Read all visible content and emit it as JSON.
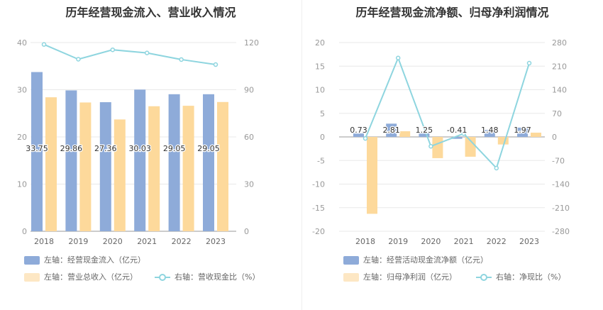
{
  "chart_data": [
    {
      "type": "bar",
      "title": "历年经营现金流入、营业收入情况",
      "categories": [
        "2018",
        "2019",
        "2020",
        "2021",
        "2022",
        "2023"
      ],
      "left_axis": {
        "ylim": [
          0,
          40
        ],
        "ticks": [
          "0",
          "10",
          "20",
          "30",
          "40"
        ]
      },
      "right_axis": {
        "ylim": [
          0,
          120
        ],
        "ticks": [
          "0",
          "30",
          "60",
          "90",
          "120"
        ]
      },
      "series": [
        {
          "name": "左轴：经营现金流入（亿元）",
          "kind": "bar",
          "axis": "left",
          "color": "#8eabd9",
          "values": [
            33.75,
            29.86,
            27.36,
            30.03,
            29.05,
            29.05
          ],
          "labels": [
            "33.75",
            "29.86",
            "27.36",
            "30.03",
            "29.05",
            "29.05"
          ]
        },
        {
          "name": "左轴：营业总收入（亿元）",
          "kind": "bar",
          "axis": "left",
          "color": "#fdd99b",
          "values": [
            28.4,
            27.3,
            23.7,
            26.5,
            26.6,
            27.4
          ]
        },
        {
          "name": "右轴：营收现金比（%）",
          "kind": "line",
          "axis": "right",
          "color": "#8ed5df",
          "values": [
            118.8,
            109.4,
            115.4,
            113.4,
            109.2,
            106.0
          ]
        }
      ],
      "legend": "bottom"
    },
    {
      "type": "bar",
      "title": "历年经营现金流净额、归母净利润情况",
      "categories": [
        "2018",
        "2019",
        "2020",
        "2021",
        "2022",
        "2023"
      ],
      "left_axis": {
        "ylim": [
          -20,
          20
        ],
        "ticks": [
          "-20",
          "-15",
          "-10",
          "-5",
          "0",
          "5",
          "10",
          "15",
          "20"
        ]
      },
      "right_axis": {
        "ylim": [
          -280,
          280
        ],
        "ticks": [
          "-280",
          "-210",
          "-140",
          "-70",
          "0",
          "70",
          "140",
          "210",
          "280"
        ]
      },
      "series": [
        {
          "name": "左轴：经营活动现金流净额（亿元）",
          "kind": "bar",
          "axis": "left",
          "color": "#8eabd9",
          "values": [
            0.73,
            2.81,
            1.25,
            -0.41,
            1.48,
            1.97
          ],
          "labels": [
            "0.73",
            "2.81",
            "1.25",
            "-0.41",
            "1.48",
            "1.97"
          ]
        },
        {
          "name": "左轴：归母净利润（亿元）",
          "kind": "bar",
          "axis": "left",
          "color": "#fdd99b",
          "values": [
            -16.3,
            1.2,
            -4.5,
            -4.2,
            -1.6,
            0.9
          ]
        },
        {
          "name": "右轴：净现比（%）",
          "kind": "line",
          "axis": "right",
          "color": "#8ed5df",
          "values": [
            -4.5,
            234.2,
            -27.8,
            9.8,
            -92.5,
            218.9
          ]
        }
      ],
      "legend": "bottom"
    }
  ]
}
